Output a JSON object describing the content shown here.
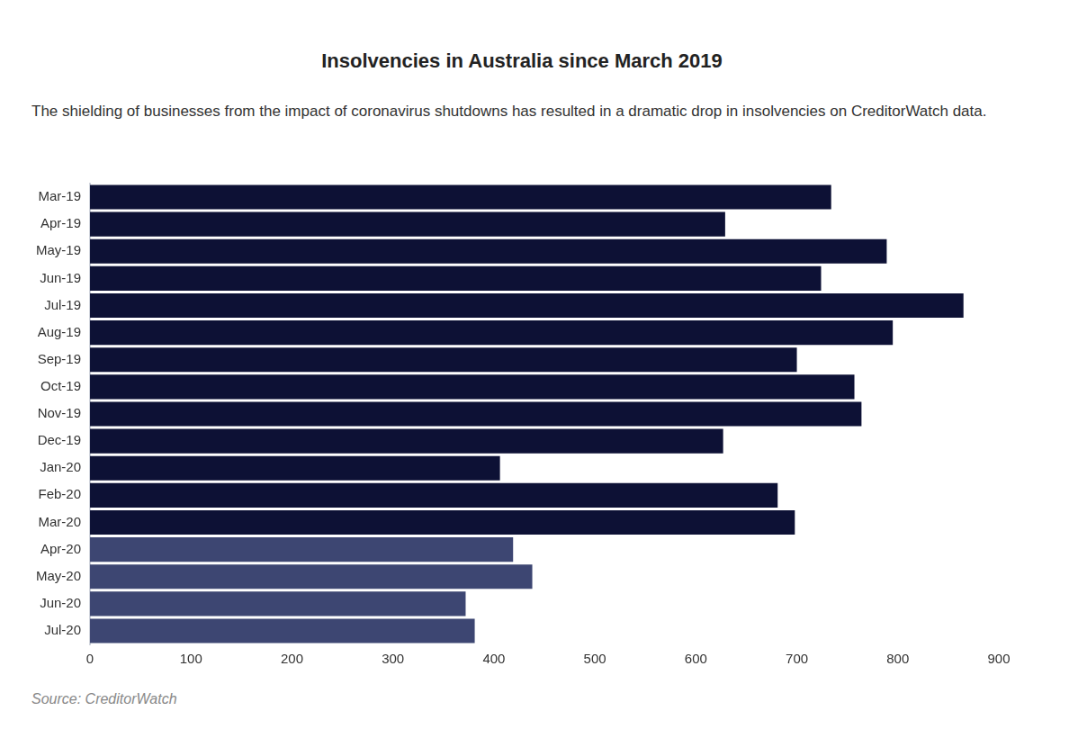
{
  "chart_data": {
    "type": "bar",
    "orientation": "horizontal",
    "title": "Insolvencies in Australia since March 2019",
    "subtitle": "The shielding of businesses from the impact of coronavirus shutdowns has resulted in a dramatic drop in insolvencies on CreditorWatch data.",
    "source": "Source: CreditorWatch",
    "categories": [
      "Mar-19",
      "Apr-19",
      "May-19",
      "Jun-19",
      "Jul-19",
      "Aug-19",
      "Sep-19",
      "Oct-19",
      "Nov-19",
      "Dec-19",
      "Jan-20",
      "Feb-20",
      "Mar-20",
      "Apr-20",
      "May-20",
      "Jun-20",
      "Jul-20"
    ],
    "values": [
      734,
      629,
      789,
      724,
      865,
      795,
      700,
      757,
      764,
      627,
      406,
      681,
      698,
      419,
      438,
      372,
      381
    ],
    "colors": [
      "#0d1135",
      "#0d1135",
      "#0d1135",
      "#0d1135",
      "#0d1135",
      "#0d1135",
      "#0d1135",
      "#0d1135",
      "#0d1135",
      "#0d1135",
      "#0d1135",
      "#0d1135",
      "#0d1135",
      "#3d4672",
      "#3d4672",
      "#3d4672",
      "#3d4672"
    ],
    "xlim": [
      0,
      900
    ],
    "xticks": [
      0,
      100,
      200,
      300,
      400,
      500,
      600,
      700,
      800,
      900
    ],
    "grid": false
  }
}
